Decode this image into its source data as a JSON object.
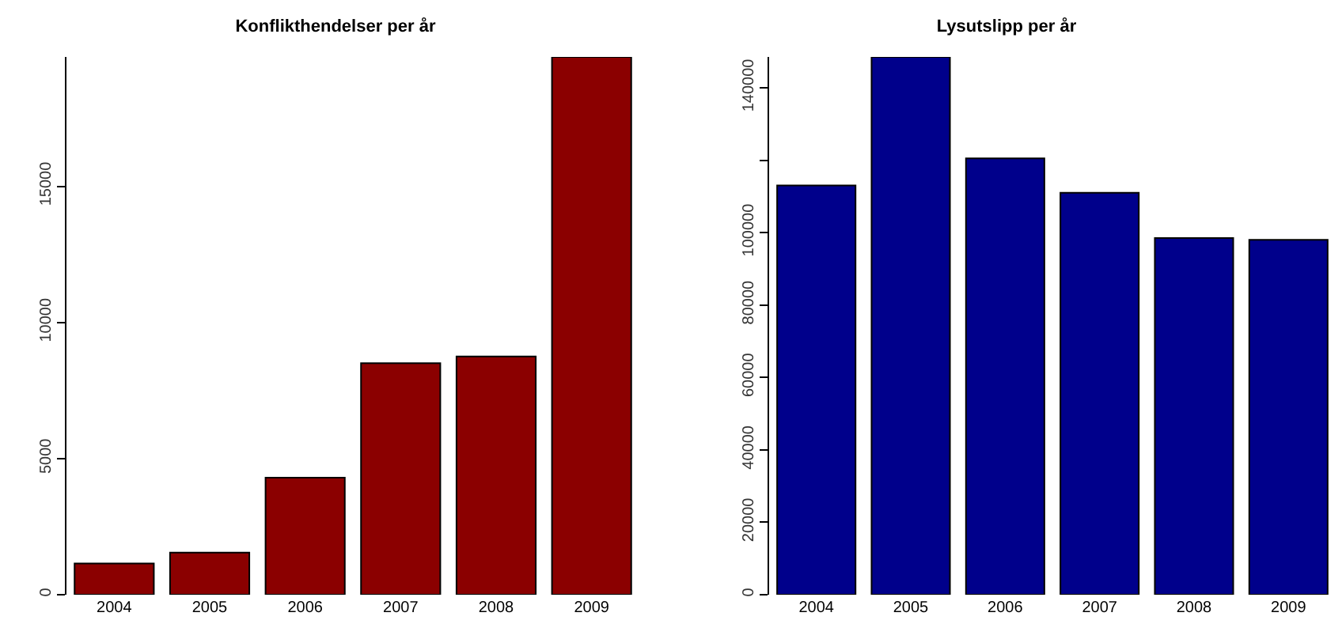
{
  "chart_data": [
    {
      "type": "bar",
      "title": "Konflikthendelser per år",
      "categories": [
        "2004",
        "2005",
        "2006",
        "2007",
        "2008",
        "2009"
      ],
      "values": [
        1150,
        1550,
        4300,
        8500,
        8750,
        19750
      ],
      "color": "#8b0000",
      "ylim": [
        0,
        19750
      ],
      "yticks": [
        0,
        5000,
        10000,
        15000
      ],
      "grid": false
    },
    {
      "type": "bar",
      "title": "Lysutslipp per år",
      "categories": [
        "2004",
        "2005",
        "2006",
        "2007",
        "2008",
        "2009"
      ],
      "values": [
        113000,
        148500,
        120500,
        111000,
        98500,
        98000
      ],
      "color": "#00008b",
      "ylim": [
        0,
        148500
      ],
      "yticks": [
        0,
        20000,
        40000,
        60000,
        80000,
        100000,
        {
          "value": 120000,
          "label": null
        },
        140000
      ],
      "grid": false
    }
  ]
}
